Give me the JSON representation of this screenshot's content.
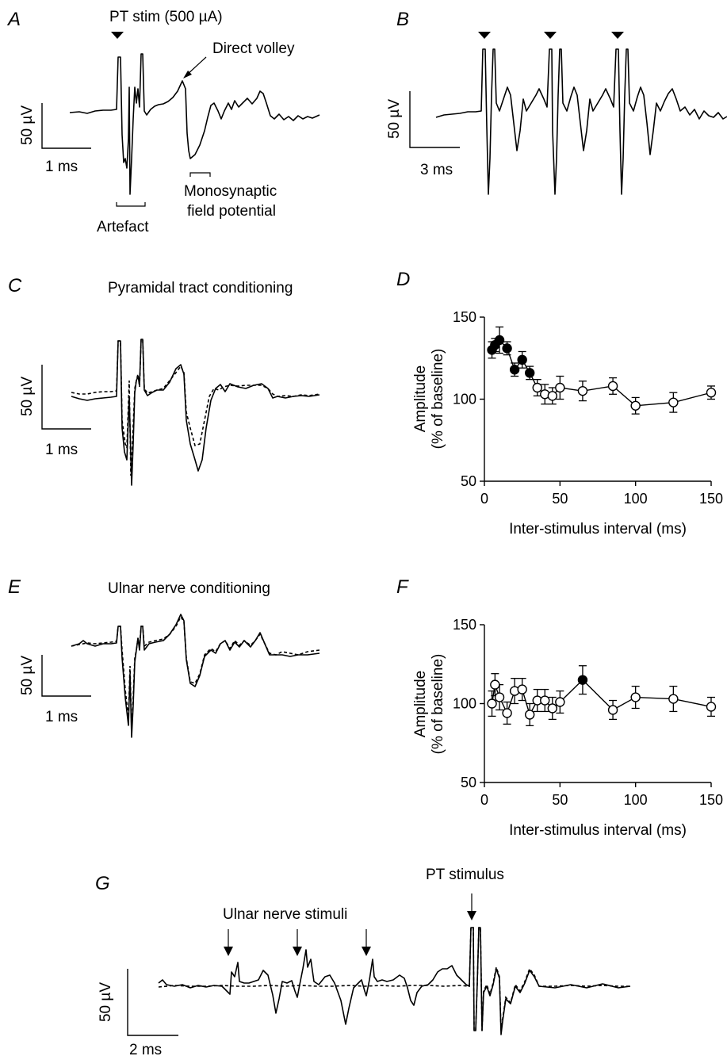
{
  "panels": {
    "A": {
      "label": "A",
      "stim": "PT stim (500 µA)",
      "volley": "Direct volley",
      "artefact": "Artefact",
      "mono1": "Monosynaptic",
      "mono2": "field potential",
      "scale_v": "50 µV",
      "scale_t": "1 ms"
    },
    "B": {
      "label": "B",
      "scale_v": "50 µV",
      "scale_t": "3 ms"
    },
    "C": {
      "label": "C",
      "title": "Pyramidal tract conditioning",
      "scale_v": "50 µV",
      "scale_t": "1 ms"
    },
    "D": {
      "label": "D"
    },
    "E": {
      "label": "E",
      "title": "Ulnar nerve conditioning",
      "scale_v": "50 µV",
      "scale_t": "1 ms"
    },
    "F": {
      "label": "F"
    },
    "G": {
      "label": "G",
      "ulnar": "Ulnar nerve stimuli",
      "pt": "PT stimulus",
      "scale_v": "50 µV",
      "scale_t": "2 ms"
    }
  },
  "chart_data": [
    {
      "panel": "D",
      "type": "scatter",
      "xlabel": "Inter-stimulus interval (ms)",
      "ylabel": "Amplitude (% of baseline)",
      "ylabel_lines": [
        "Amplitude",
        "(% of baseline)"
      ],
      "xlim": [
        0,
        150
      ],
      "ylim": [
        50,
        150
      ],
      "xticks": [
        0,
        50,
        100,
        150
      ],
      "yticks": [
        50,
        100,
        150
      ],
      "x": [
        5,
        7,
        10,
        15,
        20,
        25,
        30,
        35,
        40,
        45,
        50,
        65,
        85,
        100,
        125,
        150
      ],
      "y": [
        130,
        133,
        136,
        131,
        118,
        124,
        116,
        107,
        103,
        102,
        107,
        105,
        108,
        96,
        98,
        104
      ],
      "err": [
        5,
        4,
        8,
        4,
        4,
        5,
        4,
        5,
        6,
        5,
        7,
        6,
        5,
        5,
        6,
        4
      ],
      "filled": [
        true,
        true,
        true,
        true,
        true,
        true,
        true,
        false,
        false,
        false,
        false,
        false,
        false,
        false,
        false,
        false
      ]
    },
    {
      "panel": "F",
      "type": "scatter",
      "xlabel": "Inter-stimulus interval (ms)",
      "ylabel": "Amplitude (% of baseline)",
      "ylabel_lines": [
        "Amplitude",
        "(% of baseline)"
      ],
      "xlim": [
        0,
        150
      ],
      "ylim": [
        50,
        150
      ],
      "xticks": [
        0,
        50,
        100,
        150
      ],
      "yticks": [
        50,
        100,
        150
      ],
      "x": [
        5,
        7,
        10,
        15,
        20,
        25,
        30,
        35,
        40,
        45,
        50,
        65,
        85,
        100,
        125,
        150
      ],
      "y": [
        100,
        112,
        104,
        94,
        108,
        109,
        93,
        102,
        102,
        97,
        101,
        115,
        96,
        104,
        103,
        98
      ],
      "err": [
        8,
        7,
        8,
        7,
        8,
        7,
        7,
        7,
        7,
        7,
        7,
        9,
        6,
        7,
        8,
        6
      ],
      "filled": [
        false,
        false,
        false,
        false,
        false,
        false,
        false,
        false,
        false,
        false,
        false,
        true,
        false,
        false,
        false,
        false
      ]
    }
  ]
}
